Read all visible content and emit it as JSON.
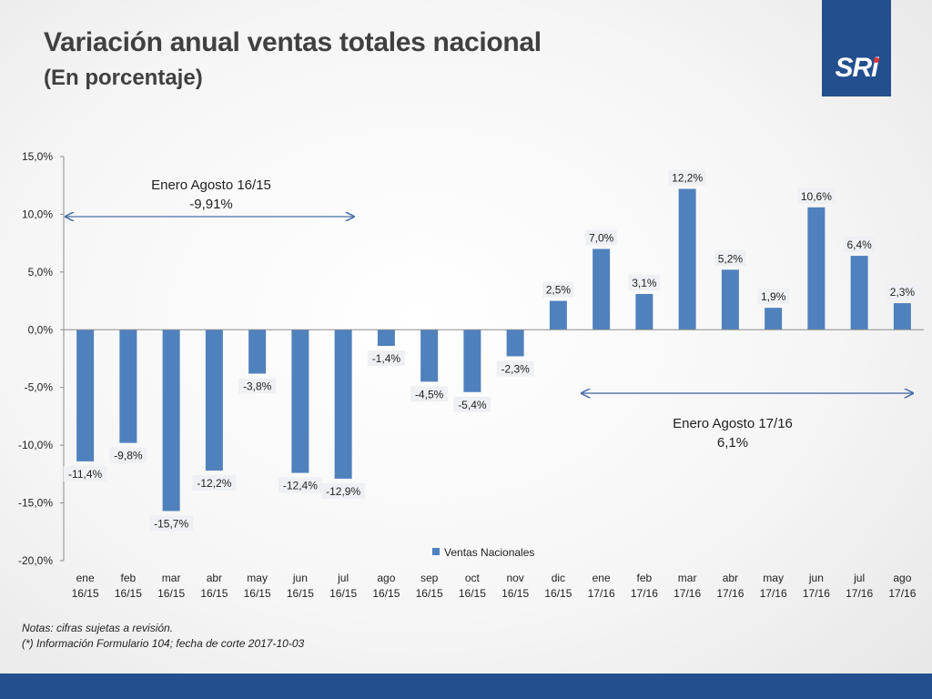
{
  "header": {
    "title": "Variación anual ventas totales nacional",
    "subtitle": "(En porcentaje)"
  },
  "logo": {
    "text": "SRi",
    "brand_color": "#234f8f",
    "dot_color": "#e0312f"
  },
  "chart_data": {
    "type": "bar",
    "categories": [
      [
        "ene",
        "16/15"
      ],
      [
        "feb",
        "16/15"
      ],
      [
        "mar",
        "16/15"
      ],
      [
        "abr",
        "16/15"
      ],
      [
        "may",
        "16/15"
      ],
      [
        "jun",
        "16/15"
      ],
      [
        "jul",
        "16/15"
      ],
      [
        "ago",
        "16/15"
      ],
      [
        "sep",
        "16/15"
      ],
      [
        "oct",
        "16/15"
      ],
      [
        "nov",
        "16/15"
      ],
      [
        "dic",
        "16/15"
      ],
      [
        "ene",
        "17/16"
      ],
      [
        "feb",
        "17/16"
      ],
      [
        "mar",
        "17/16"
      ],
      [
        "abr",
        "17/16"
      ],
      [
        "may",
        "17/16"
      ],
      [
        "jun",
        "17/16"
      ],
      [
        "jul",
        "17/16"
      ],
      [
        "ago",
        "17/16"
      ]
    ],
    "series": [
      {
        "name": "Ventas Nacionales",
        "color": "#4f81bd",
        "values": [
          -11.4,
          -9.8,
          -15.7,
          -12.2,
          -3.8,
          -12.4,
          -12.9,
          -1.4,
          -4.5,
          -5.4,
          -2.3,
          2.5,
          7.0,
          3.1,
          12.2,
          5.2,
          1.9,
          10.6,
          6.4,
          2.3
        ],
        "labels": [
          "-11,4%",
          "-9,8%",
          "-15,7%",
          "-12,2%",
          "-3,8%",
          "-12,4%",
          "-12,9%",
          "-1,4%",
          "-4,5%",
          "-5,4%",
          "-2,3%",
          "2,5%",
          "7,0%",
          "3,1%",
          "12,2%",
          "5,2%",
          "1,9%",
          "10,6%",
          "6,4%",
          "2,3%"
        ]
      }
    ],
    "ylim": [
      -20,
      15
    ],
    "yticks": [
      15,
      10,
      5,
      0,
      -5,
      -10,
      -15,
      -20
    ],
    "ytick_labels": [
      "15,0%",
      "10,0%",
      "5,0%",
      "0,0%",
      "-5,0%",
      "-10,0%",
      "-15,0%",
      "-20,0%"
    ],
    "xlabel": "",
    "ylabel": "",
    "grid": false,
    "legend_position": "bottom",
    "annotations": [
      {
        "line1": "Enero Agosto 16/15",
        "line2": "-9,91%",
        "from_index": 0,
        "to_index": 6,
        "y": 9.8
      },
      {
        "line1": "Enero Agosto 17/16",
        "line2": "6,1%",
        "from_index": 12,
        "to_index": 19,
        "y": -5.5
      }
    ]
  },
  "notes": {
    "line1": "Notas: cifras sujetas a revisión.",
    "line2": "(*) Información Formulario 104; fecha de corte 2017-10-03"
  }
}
